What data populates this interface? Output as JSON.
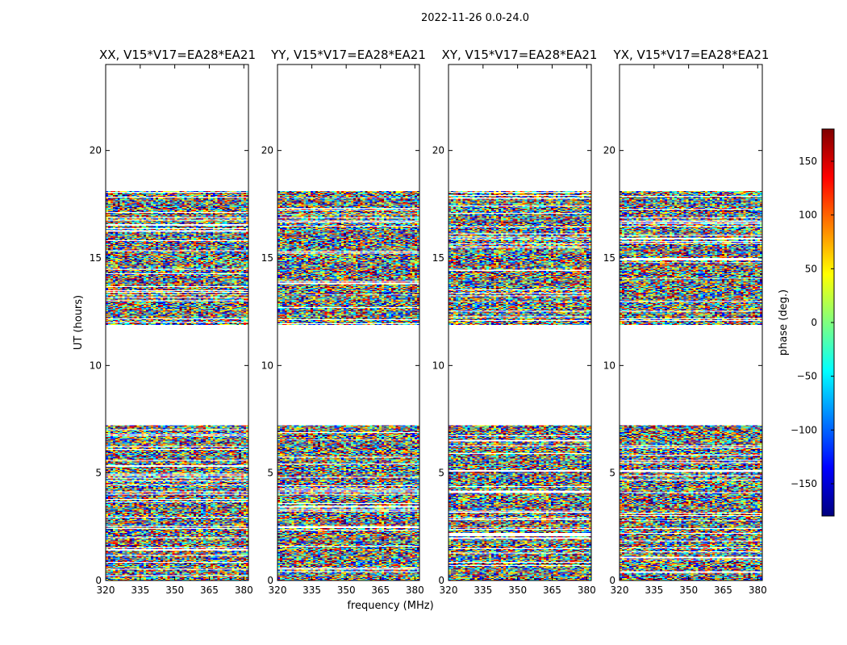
{
  "chart_data": {
    "type": "heatmap",
    "suptitle": "2022-11-26 0.0-24.0",
    "xlabel": "frequency (MHz)",
    "ylabel": "UT (hours)",
    "xlim": [
      320,
      382
    ],
    "ylim": [
      0,
      24
    ],
    "xticks": [
      320,
      335,
      350,
      365,
      380
    ],
    "yticks": [
      0,
      5,
      10,
      15,
      20
    ],
    "colorbar": {
      "label": "phase (deg.)",
      "range": [
        -180,
        180
      ],
      "ticks": [
        -150,
        -100,
        -50,
        0,
        50,
        100,
        150
      ],
      "tick_labels": [
        "−150",
        "−100",
        "−50",
        "0",
        "50",
        "100",
        "150"
      ],
      "colormap": [
        "#00007f",
        "#0000ff",
        "#007fff",
        "#00ffff",
        "#7fff7f",
        "#ffff00",
        "#ff7f00",
        "#ff0000",
        "#7f0000"
      ]
    },
    "data_hour_ranges": [
      [
        0.0,
        7.2
      ],
      [
        11.9,
        18.1
      ]
    ],
    "panels": [
      {
        "title": "XX, V15*V17=EA28*EA21"
      },
      {
        "title": "YY, V15*V17=EA28*EA21"
      },
      {
        "title": "XY, V15*V17=EA28*EA21"
      },
      {
        "title": "YX, V15*V17=EA28*EA21"
      }
    ]
  }
}
